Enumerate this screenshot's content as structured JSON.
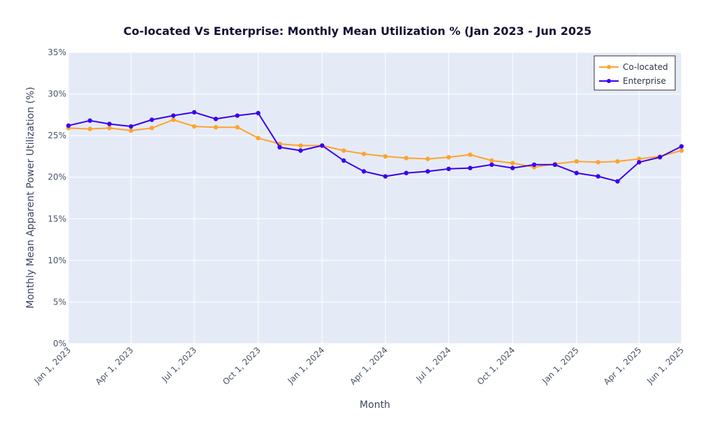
{
  "chart_data": {
    "type": "line",
    "title": "Co-located Vs Enterprise: Monthly Mean Utilization % (Jan 2023 - Jun 2025",
    "xlabel": "Month",
    "ylabel": "Monthly Mean Apparent Power Utilization (%)",
    "ylim": [
      0,
      35
    ],
    "y_ticks": [
      0,
      5,
      10,
      15,
      20,
      25,
      30,
      35
    ],
    "y_tick_labels": [
      "0%",
      "5%",
      "10%",
      "15%",
      "20%",
      "25%",
      "30%",
      "35%"
    ],
    "x_range": [
      "2023-01-01",
      "2025-06-01"
    ],
    "x_ticks": [
      "2023-01-01",
      "2023-04-01",
      "2023-07-01",
      "2023-10-01",
      "2024-01-01",
      "2024-04-01",
      "2024-07-01",
      "2024-10-01",
      "2025-01-01",
      "2025-04-01",
      "2025-06-01"
    ],
    "x_tick_labels": [
      "Jan 1, 2023",
      "Apr 1, 2023",
      "Jul 1, 2023",
      "Oct 1, 2023",
      "Jan 1, 2024",
      "Apr 1, 2024",
      "Jul 1, 2024",
      "Oct 1, 2024",
      "Jan 1, 2025",
      "Apr 1, 2025",
      "Jun 1, 2025"
    ],
    "grid": true,
    "legend_position": "top-right",
    "x": [
      "2023-01-01",
      "2023-02-01",
      "2023-03-01",
      "2023-04-01",
      "2023-05-01",
      "2023-06-01",
      "2023-07-01",
      "2023-08-01",
      "2023-09-01",
      "2023-10-01",
      "2023-11-01",
      "2023-12-01",
      "2024-01-01",
      "2024-02-01",
      "2024-03-01",
      "2024-04-01",
      "2024-05-01",
      "2024-06-01",
      "2024-07-01",
      "2024-08-01",
      "2024-09-01",
      "2024-10-01",
      "2024-11-01",
      "2024-12-01",
      "2025-01-01",
      "2025-02-01",
      "2025-03-01",
      "2025-04-01",
      "2025-05-01",
      "2025-06-01"
    ],
    "series": [
      {
        "name": "Co-located",
        "color": "#ffa22e",
        "values": [
          25.9,
          25.8,
          25.9,
          25.6,
          25.9,
          26.9,
          26.1,
          26.0,
          26.0,
          24.7,
          24.0,
          23.8,
          23.8,
          23.2,
          22.8,
          22.5,
          22.3,
          22.2,
          22.4,
          22.7,
          22.0,
          21.7,
          21.2,
          21.6,
          21.9,
          21.8,
          21.9,
          22.2,
          22.5,
          23.2
        ]
      },
      {
        "name": "Enterprise",
        "color": "#3a00f0",
        "values": [
          26.2,
          26.8,
          26.4,
          26.1,
          26.9,
          27.4,
          27.8,
          27.0,
          27.4,
          27.7,
          23.6,
          23.2,
          23.8,
          22.0,
          20.7,
          20.1,
          20.5,
          20.7,
          21.0,
          21.1,
          21.5,
          21.1,
          21.5,
          21.5,
          20.5,
          20.1,
          19.5,
          21.8,
          22.4,
          23.7
        ]
      }
    ]
  }
}
